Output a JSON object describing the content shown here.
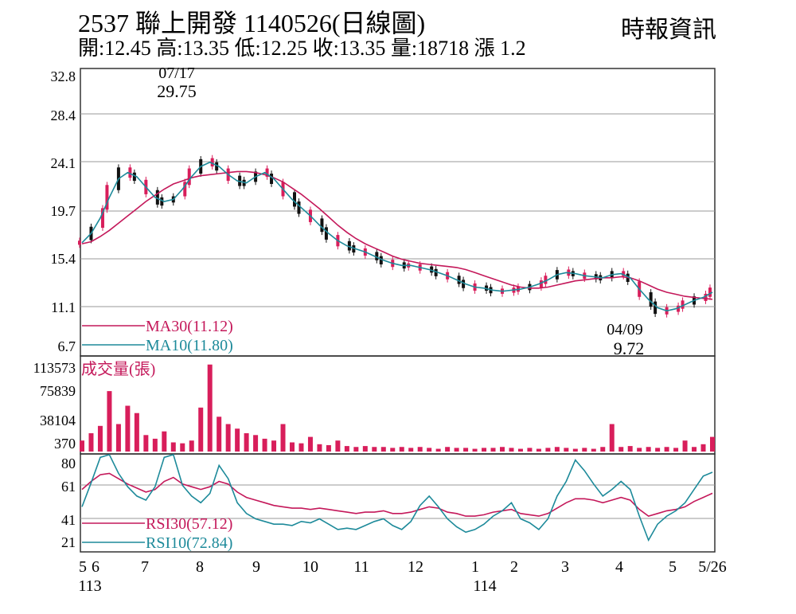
{
  "header": {
    "title": "2537  聯上開發 1140526(日線圖)",
    "source": "時報資訊",
    "ohlc": "開:12.45 高:13.35 低:12.25 收:13.35 量:18718 漲 1.2"
  },
  "colors": {
    "up": "#d81e5b",
    "down": "#111111",
    "ma30": "#c4185a",
    "ma10": "#1d8a9a",
    "volume": "#d81e5b",
    "grid": "#999999"
  },
  "chart_data": [
    {
      "type": "candlestick",
      "title": "",
      "ylim": [
        6.7,
        32.8
      ],
      "y_ticks": [
        "32.8",
        "28.4",
        "24.1",
        "19.7",
        "15.4",
        "11.1",
        "6.7"
      ],
      "annotations": [
        {
          "date": "07/17",
          "value": "29.75",
          "kind": "high"
        },
        {
          "date": "04/09",
          "value": "9.72",
          "kind": "low"
        }
      ],
      "series": [
        {
          "name": "MA30(11.12)",
          "values": [
            16.5,
            16.7,
            17.2,
            17.8,
            18.5,
            19.2,
            19.9,
            20.6,
            21.2,
            21.8,
            22.3,
            22.6,
            22.9,
            23.1,
            23.2,
            23.3,
            23.4,
            23.5,
            23.5,
            23.4,
            23.2,
            22.9,
            22.5,
            21.9,
            21.3,
            20.6,
            19.9,
            19.1,
            18.3,
            17.6,
            17.0,
            16.5,
            16.1,
            15.7,
            15.3,
            15.0,
            14.8,
            14.6,
            14.5,
            14.4,
            14.3,
            14.2,
            14.0,
            13.7,
            13.4,
            13.1,
            12.8,
            12.5,
            12.3,
            12.2,
            12.2,
            12.3,
            12.5,
            12.7,
            12.9,
            13.0,
            13.1,
            13.2,
            13.2,
            13.3,
            13.2,
            12.9,
            12.5,
            12.1,
            11.8,
            11.6,
            11.4,
            11.3,
            11.2,
            11.12
          ]
        },
        {
          "name": "MA10(11.80)",
          "values": [
            16.6,
            17.5,
            19.0,
            21.0,
            22.8,
            23.4,
            23.0,
            22.0,
            21.0,
            20.6,
            20.8,
            21.8,
            23.0,
            24.0,
            24.4,
            24.0,
            23.2,
            22.6,
            22.4,
            23.0,
            23.4,
            22.8,
            21.8,
            20.8,
            20.0,
            19.2,
            18.3,
            17.5,
            16.8,
            16.3,
            16.0,
            15.7,
            15.3,
            14.9,
            14.6,
            14.4,
            14.4,
            14.2,
            14.0,
            13.7,
            13.4,
            13.0,
            12.6,
            12.3,
            12.2,
            12.0,
            11.9,
            12.0,
            12.1,
            12.3,
            12.6,
            13.0,
            13.5,
            13.7,
            13.6,
            13.4,
            13.3,
            13.2,
            13.5,
            13.6,
            13.2,
            12.1,
            11.1,
            10.3,
            10.0,
            10.2,
            10.6,
            11.0,
            11.3,
            11.8
          ]
        }
      ]
    },
    {
      "type": "bar",
      "title": "成交量(張)",
      "y_ticks": [
        "113573",
        "75839",
        "38104",
        "370"
      ]
    },
    {
      "type": "line",
      "y_ticks": [
        "80",
        "61",
        "41",
        "21"
      ],
      "series": [
        {
          "name": "RSI30(57.12)",
          "values": [
            60,
            66,
            71,
            72,
            68,
            64,
            61,
            58,
            60,
            66,
            69,
            64,
            62,
            60,
            62,
            66,
            64,
            58,
            54,
            52,
            50,
            48,
            47,
            46,
            46,
            45,
            46,
            45,
            44,
            43,
            42,
            43,
            43,
            44,
            42,
            42,
            43,
            45,
            47,
            46,
            43,
            42,
            40,
            40,
            41,
            43,
            44,
            45,
            42,
            41,
            40,
            42,
            46,
            50,
            53,
            53,
            52,
            50,
            52,
            54,
            52,
            45,
            40,
            42,
            44,
            45,
            47,
            51,
            54,
            57.12
          ]
        },
        {
          "name": "RSI10(72.84)",
          "values": [
            47,
            65,
            84,
            86,
            72,
            62,
            55,
            52,
            62,
            84,
            86,
            63,
            55,
            50,
            57,
            78,
            68,
            50,
            42,
            38,
            36,
            34,
            34,
            33,
            36,
            35,
            38,
            34,
            30,
            31,
            30,
            33,
            36,
            38,
            33,
            30,
            36,
            48,
            55,
            47,
            38,
            32,
            28,
            30,
            34,
            40,
            44,
            50,
            38,
            35,
            30,
            38,
            55,
            66,
            82,
            74,
            64,
            55,
            60,
            66,
            60,
            40,
            22,
            34,
            40,
            44,
            50,
            60,
            70,
            72.84
          ]
        }
      ],
      "x_ticks": [
        "5",
        "6",
        "7",
        "8",
        "9",
        "10",
        "11",
        "12",
        "1",
        "2",
        "3",
        "4",
        "5",
        "5/26"
      ],
      "x_year_labels": [
        "113",
        "114"
      ]
    }
  ]
}
